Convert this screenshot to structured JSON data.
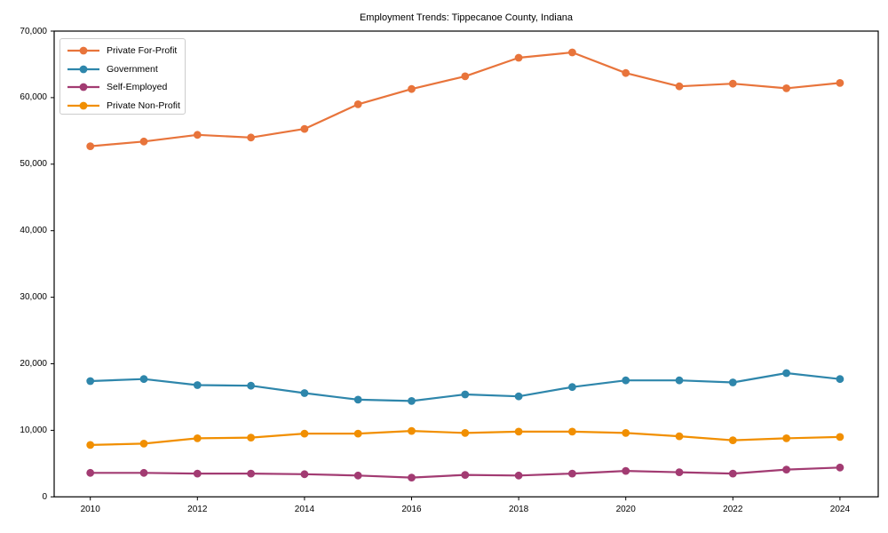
{
  "chart_data": {
    "type": "line",
    "title": "Employment Trends: Tippecanoe County, Indiana",
    "x": [
      2010,
      2011,
      2012,
      2013,
      2014,
      2015,
      2016,
      2017,
      2018,
      2019,
      2020,
      2021,
      2022,
      2023,
      2024
    ],
    "xticks": [
      2010,
      2012,
      2014,
      2016,
      2018,
      2020,
      2022,
      2024
    ],
    "ylim": [
      0,
      70000
    ],
    "yticks": [
      0,
      10000,
      20000,
      30000,
      40000,
      50000,
      60000,
      70000
    ],
    "ytick_labels": [
      "0",
      "10,000",
      "20,000",
      "30,000",
      "40,000",
      "50,000",
      "60,000",
      "70,000"
    ],
    "grid": false,
    "legend_position": "upper-left",
    "marker": "circle",
    "series": [
      {
        "name": "Private For-Profit",
        "color": "#e8743b",
        "values": [
          52700,
          53400,
          54400,
          54000,
          55300,
          59000,
          61300,
          63200,
          66000,
          66800,
          63700,
          61700,
          62100,
          61400,
          62200
        ]
      },
      {
        "name": "Government",
        "color": "#2e86ab",
        "values": [
          17400,
          17700,
          16800,
          16700,
          15600,
          14600,
          14400,
          15400,
          15100,
          16500,
          17500,
          17500,
          17200,
          18600,
          17700
        ]
      },
      {
        "name": "Self-Employed",
        "color": "#a23b72",
        "values": [
          3600,
          3600,
          3500,
          3500,
          3400,
          3200,
          2900,
          3300,
          3200,
          3500,
          3900,
          3700,
          3500,
          4100,
          4400
        ]
      },
      {
        "name": "Private Non-Profit",
        "color": "#f18f01",
        "values": [
          7800,
          8000,
          8800,
          8900,
          9500,
          9500,
          9900,
          9600,
          9800,
          9800,
          9600,
          9100,
          8500,
          8800,
          9000
        ]
      }
    ]
  }
}
